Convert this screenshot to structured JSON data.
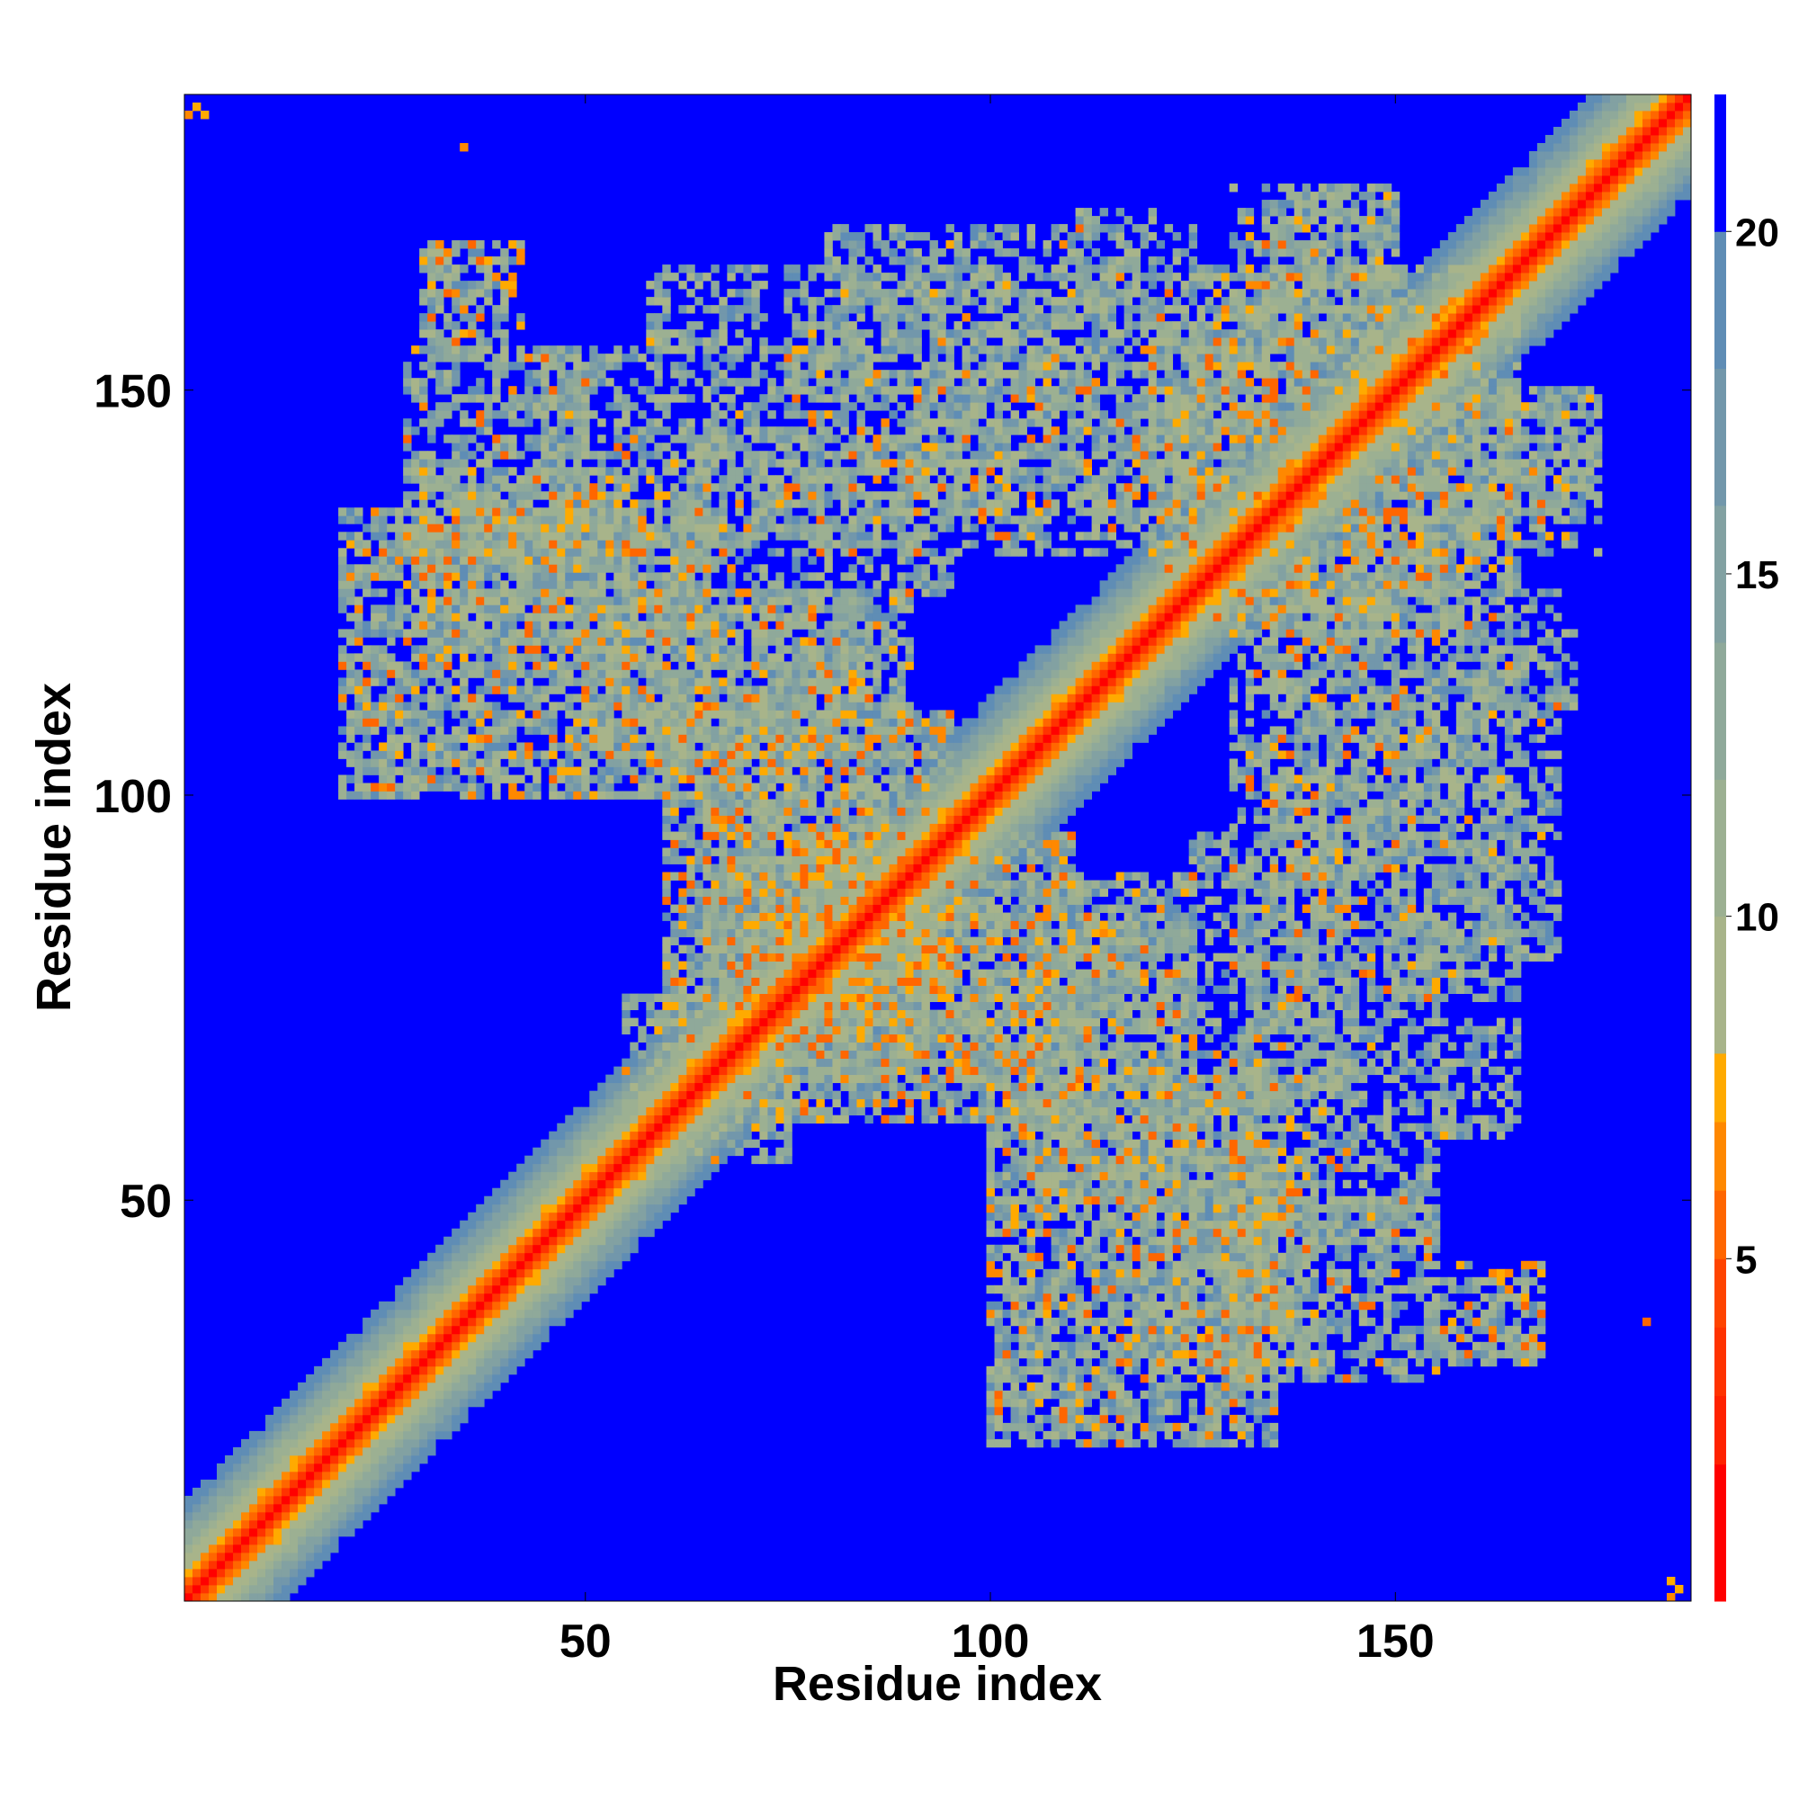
{
  "chart_data": {
    "type": "heatmap",
    "title": "",
    "xlabel": "Residue index",
    "ylabel": "Residue index",
    "n_residues": 186,
    "xlim": [
      1,
      186
    ],
    "ylim": [
      1,
      186
    ],
    "x_ticks": [
      50,
      100,
      150
    ],
    "y_ticks": [
      50,
      100,
      150
    ],
    "x_tick_labels": [
      "50",
      "100",
      "150"
    ],
    "y_tick_labels": [
      "50",
      "100",
      "150"
    ],
    "colorbar": {
      "range": [
        0,
        22
      ],
      "ticks": [
        5,
        10,
        15,
        20
      ],
      "tick_labels": [
        "5",
        "10",
        "15",
        "20"
      ],
      "bands": [
        {
          "from": 0,
          "to": 2,
          "color": "#ff0000"
        },
        {
          "from": 2,
          "to": 3,
          "color": "#ff2200"
        },
        {
          "from": 3,
          "to": 4,
          "color": "#ff3300"
        },
        {
          "from": 4,
          "to": 5,
          "color": "#ff4400"
        },
        {
          "from": 5,
          "to": 6,
          "color": "#ff6600"
        },
        {
          "from": 6,
          "to": 7,
          "color": "#ff8800"
        },
        {
          "from": 7,
          "to": 8,
          "color": "#ffaa00"
        },
        {
          "from": 8,
          "to": 10,
          "color": "#a8b48a"
        },
        {
          "from": 10,
          "to": 12,
          "color": "#9cb092"
        },
        {
          "from": 12,
          "to": 14,
          "color": "#8fa99a"
        },
        {
          "from": 14,
          "to": 16,
          "color": "#82a1a2"
        },
        {
          "from": 16,
          "to": 18,
          "color": "#7297ab"
        },
        {
          "from": 18,
          "to": 20,
          "color": "#5f8db5"
        },
        {
          "from": 20,
          "to": 22,
          "color": "#0000ff"
        }
      ]
    },
    "band_default": 21,
    "diagonal_profile": [
      {
        "offset": 0,
        "value": 1
      },
      {
        "offset": 1,
        "value": 3.5
      },
      {
        "offset": 2,
        "value": 5.5
      },
      {
        "offset": 3,
        "value": 6.8
      },
      {
        "offset": 4,
        "value": 8.5
      },
      {
        "offset": 5,
        "value": 9.5
      },
      {
        "offset": 6,
        "value": 11
      },
      {
        "offset": 7,
        "value": 12.5
      },
      {
        "offset": 8,
        "value": 14
      },
      {
        "offset": 9,
        "value": 15.5
      },
      {
        "offset": 10,
        "value": 17
      },
      {
        "offset": 11,
        "value": 18.5
      },
      {
        "offset": 12,
        "value": 19.5
      }
    ],
    "contact_regions": [
      {
        "x": [
          20,
          65
        ],
        "y": [
          100,
          135
        ],
        "density": 0.75,
        "close_fraction": 0.12
      },
      {
        "x": [
          28,
          50
        ],
        "y": [
          128,
          155
        ],
        "density": 0.6,
        "close_fraction": 0.05
      },
      {
        "x": [
          30,
          42
        ],
        "y": [
          157,
          168
        ],
        "density": 0.55,
        "close_fraction": 0.12
      },
      {
        "x": [
          60,
          95
        ],
        "y": [
          75,
          110
        ],
        "density": 0.75,
        "close_fraction": 0.12
      },
      {
        "x": [
          65,
          85
        ],
        "y": [
          90,
          125
        ],
        "density": 0.6,
        "close_fraction": 0.08
      },
      {
        "x": [
          55,
          75
        ],
        "y": [
          60,
          75
        ],
        "density": 0.6,
        "close_fraction": 0.06
      },
      {
        "x": [
          70,
          95
        ],
        "y": [
          65,
          85
        ],
        "density": 0.7,
        "close_fraction": 0.15
      },
      {
        "x": [
          105,
          125
        ],
        "y": [
          50,
          90
        ],
        "density": 0.7,
        "close_fraction": 0.1
      },
      {
        "x": [
          115,
          140
        ],
        "y": [
          30,
          55
        ],
        "density": 0.65,
        "close_fraction": 0.06
      },
      {
        "x": [
          45,
          130
        ],
        "y": [
          130,
          155
        ],
        "density": 0.5,
        "close_fraction": 0.05
      },
      {
        "x": [
          80,
          125
        ],
        "y": [
          155,
          170
        ],
        "density": 0.45,
        "close_fraction": 0.02
      },
      {
        "x": [
          58,
          72
        ],
        "y": [
          155,
          165
        ],
        "density": 0.55,
        "close_fraction": 0.02
      },
      {
        "x": [
          125,
          160
        ],
        "y": [
          120,
          165
        ],
        "density": 0.65,
        "close_fraction": 0.1
      },
      {
        "x": [
          130,
          150
        ],
        "y": [
          160,
          175
        ],
        "density": 0.5,
        "close_fraction": 0.04
      },
      {
        "x": [
          160,
          175
        ],
        "y": [
          135,
          150
        ],
        "density": 0.55,
        "close_fraction": 0.04
      },
      {
        "x": [
          135,
          150
        ],
        "y": [
          90,
          125
        ],
        "density": 0.6,
        "close_fraction": 0.1
      },
      {
        "x": [
          125,
          145
        ],
        "y": [
          55,
          95
        ],
        "density": 0.5,
        "close_fraction": 0.03
      },
      {
        "x": [
          150,
          165
        ],
        "y": [
          75,
          115
        ],
        "density": 0.55,
        "close_fraction": 0.04
      },
      {
        "x": [
          155,
          168
        ],
        "y": [
          30,
          40
        ],
        "density": 0.5,
        "close_fraction": 0.1
      },
      {
        "x": [
          158,
          172
        ],
        "y": [
          110,
          120
        ],
        "density": 0.4,
        "close_fraction": 0.02
      }
    ],
    "strong_contacts": [
      {
        "x": 1,
        "y": 184,
        "value": 6
      },
      {
        "x": 2,
        "y": 185,
        "value": 7
      },
      {
        "x": 3,
        "y": 184,
        "value": 7
      },
      {
        "x": 184,
        "y": 1,
        "value": 6
      },
      {
        "x": 185,
        "y": 2,
        "value": 7
      },
      {
        "x": 184,
        "y": 3,
        "value": 7
      },
      {
        "x": 35,
        "y": 180,
        "value": 6
      },
      {
        "x": 181,
        "y": 35,
        "value": 5
      },
      {
        "x": 31,
        "y": 163,
        "value": 7
      },
      {
        "x": 36,
        "y": 157,
        "value": 6
      },
      {
        "x": 84,
        "y": 145,
        "value": 6
      },
      {
        "x": 86,
        "y": 143,
        "value": 6
      },
      {
        "x": 88,
        "y": 141,
        "value": 6
      },
      {
        "x": 98,
        "y": 139,
        "value": 5
      },
      {
        "x": 145,
        "y": 84,
        "value": 6
      },
      {
        "x": 143,
        "y": 86,
        "value": 6
      },
      {
        "x": 141,
        "y": 88,
        "value": 6
      },
      {
        "x": 139,
        "y": 98,
        "value": 5
      },
      {
        "x": 134,
        "y": 147,
        "value": 6
      },
      {
        "x": 136,
        "y": 145,
        "value": 6
      },
      {
        "x": 144,
        "y": 135,
        "value": 6
      },
      {
        "x": 146,
        "y": 133,
        "value": 6
      },
      {
        "x": 147,
        "y": 134,
        "value": 6
      },
      {
        "x": 145,
        "y": 136,
        "value": 6
      },
      {
        "x": 135,
        "y": 144,
        "value": 6
      },
      {
        "x": 133,
        "y": 146,
        "value": 6
      },
      {
        "x": 72,
        "y": 90,
        "value": 6
      },
      {
        "x": 74,
        "y": 88,
        "value": 6
      },
      {
        "x": 76,
        "y": 86,
        "value": 6
      },
      {
        "x": 90,
        "y": 72,
        "value": 6
      },
      {
        "x": 88,
        "y": 74,
        "value": 6
      },
      {
        "x": 86,
        "y": 76,
        "value": 6
      },
      {
        "x": 100,
        "y": 100,
        "value": 5
      },
      {
        "x": 140,
        "y": 100,
        "value": 5
      },
      {
        "x": 100,
        "y": 140,
        "value": 5
      },
      {
        "x": 160,
        "y": 35,
        "value": 6
      },
      {
        "x": 158,
        "y": 33,
        "value": 6
      },
      {
        "x": 35,
        "y": 160,
        "value": 6
      }
    ]
  }
}
